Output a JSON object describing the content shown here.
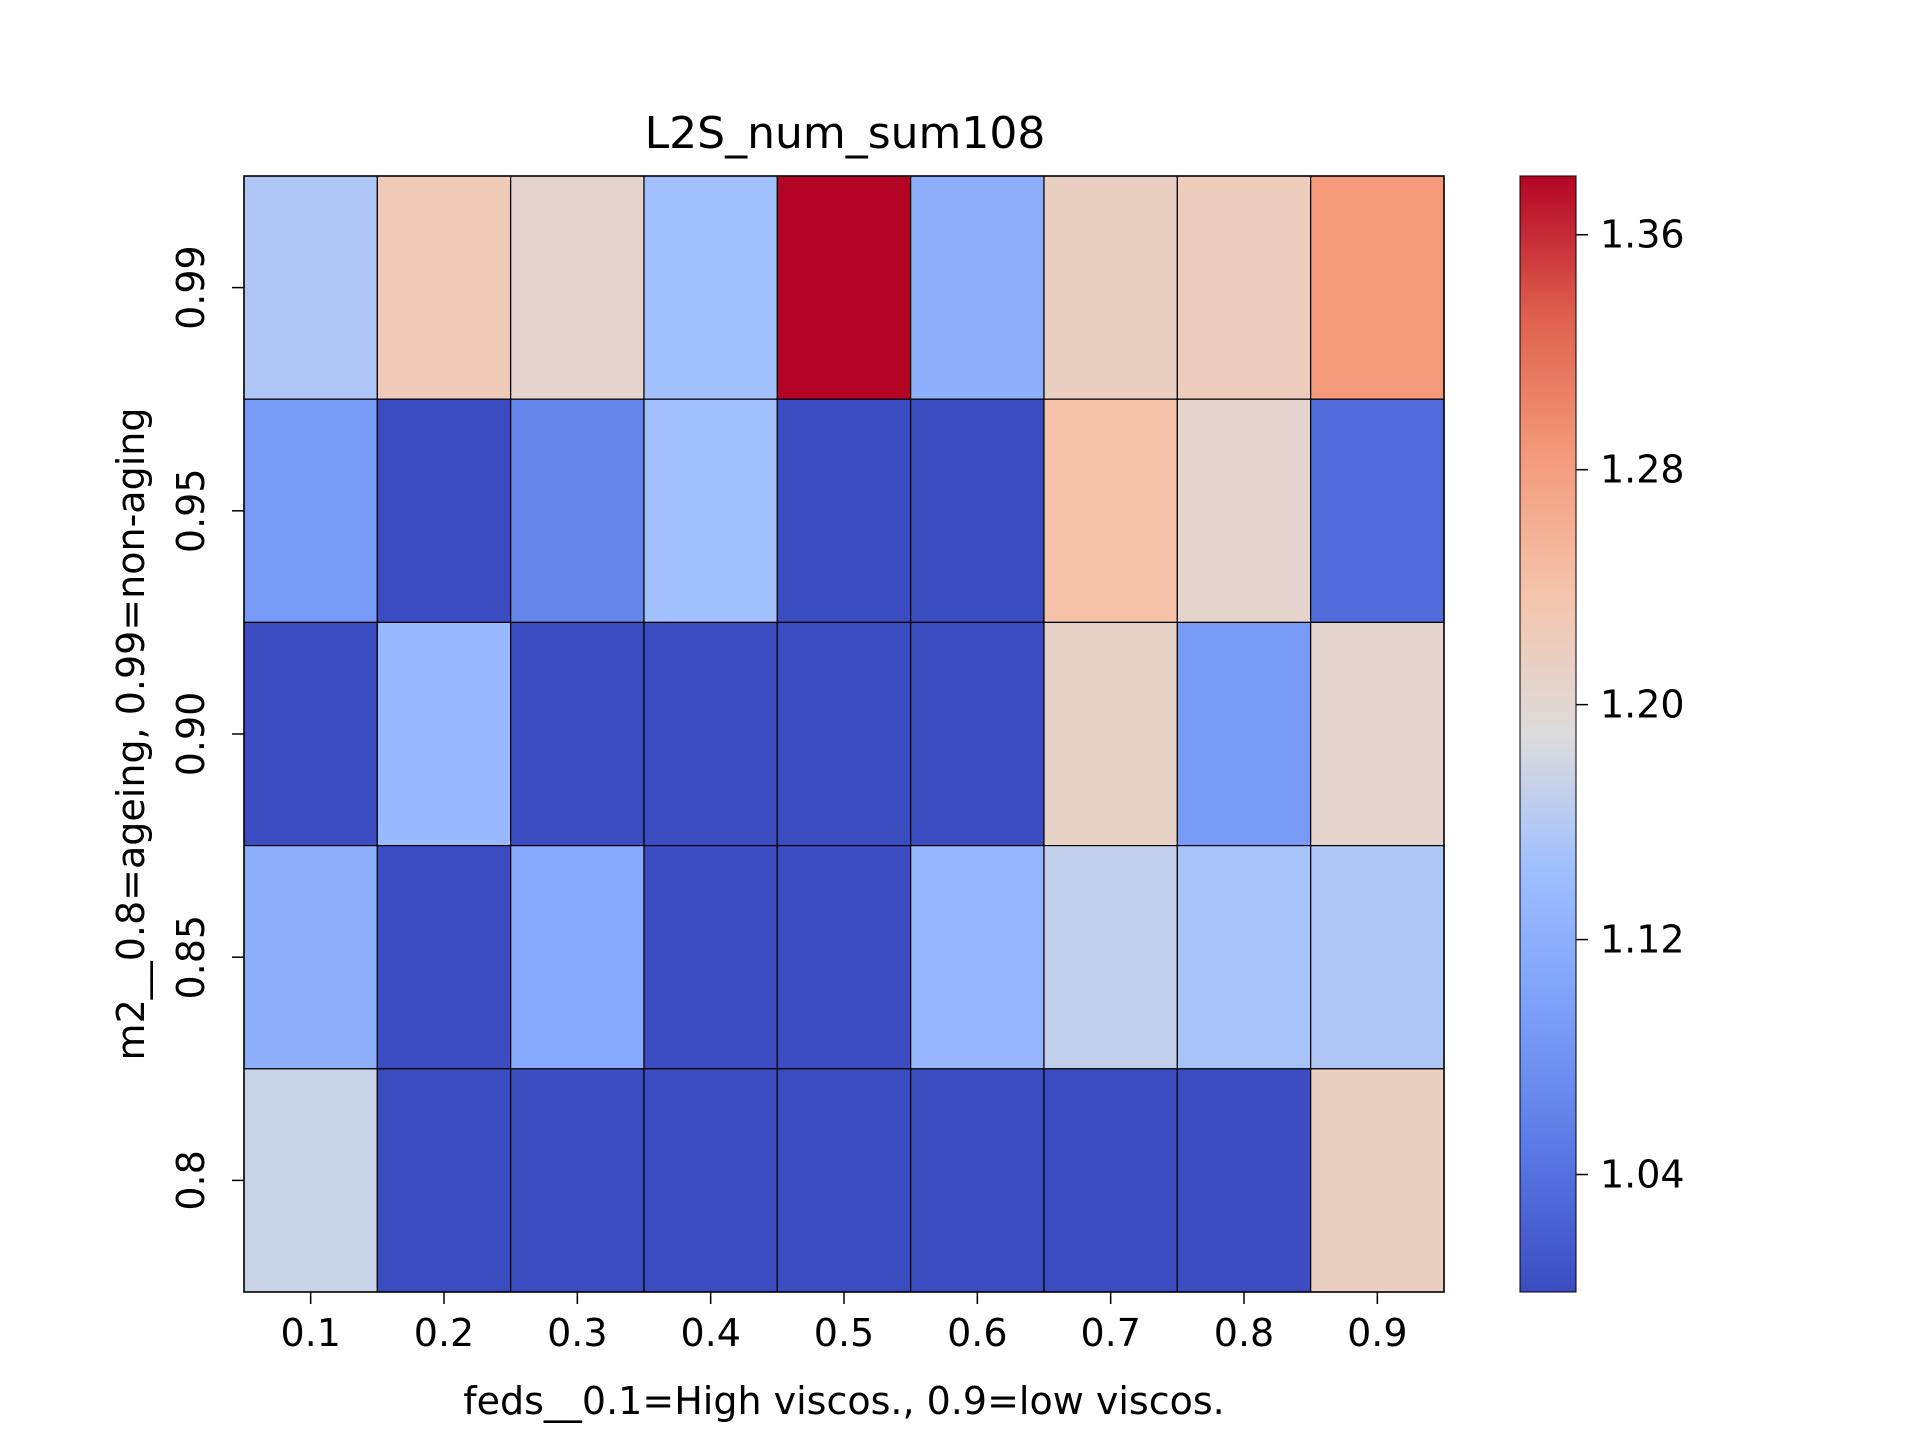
{
  "chart_data": {
    "type": "heatmap",
    "title": "L2S_num_sum108",
    "xlabel": "feds__0.1=High viscos., 0.9=low viscos.",
    "ylabel": "m2__0.8=ageing, 0.99=non-aging",
    "x_categories": [
      "0.1",
      "0.2",
      "0.3",
      "0.4",
      "0.5",
      "0.6",
      "0.7",
      "0.8",
      "0.9"
    ],
    "y_categories": [
      "0.99",
      "0.95",
      "0.90",
      "0.85",
      "0.8"
    ],
    "values": [
      [
        1.155,
        1.225,
        1.205,
        1.145,
        1.38,
        1.12,
        1.215,
        1.222,
        1.285
      ],
      [
        1.09,
        1.0,
        1.065,
        1.145,
        1.0,
        1.0,
        1.24,
        1.205,
        1.035
      ],
      [
        1.0,
        1.135,
        1.0,
        1.0,
        1.0,
        1.0,
        1.21,
        1.09,
        1.205
      ],
      [
        1.12,
        1.0,
        1.11,
        1.0,
        1.0,
        1.13,
        1.17,
        1.15,
        1.155
      ],
      [
        1.175,
        1.0,
        1.0,
        1.0,
        1.0,
        1.0,
        1.0,
        1.0,
        1.215
      ]
    ],
    "colormap": "coolwarm",
    "colorbar": {
      "vmin": 1.0,
      "vmax": 1.38,
      "ticks": [
        1.04,
        1.12,
        1.2,
        1.28,
        1.36
      ],
      "tick_labels": [
        "1.04",
        "1.12",
        "1.20",
        "1.28",
        "1.36"
      ]
    },
    "cell_border_color": "#000000",
    "grid": false
  }
}
